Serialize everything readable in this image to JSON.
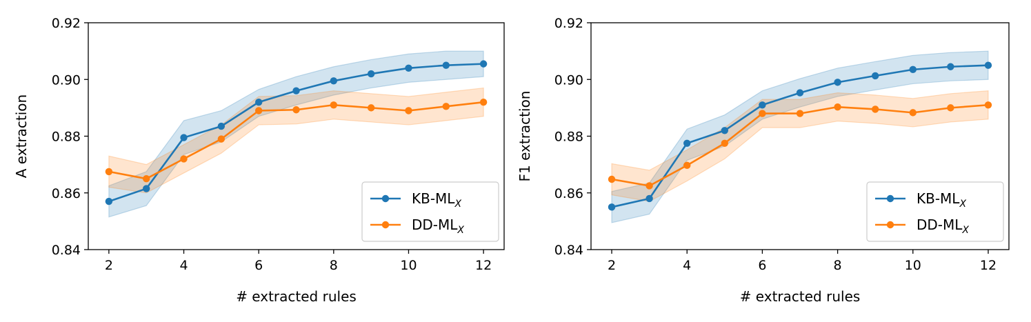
{
  "chart_data": [
    {
      "type": "line",
      "xlabel": "# extracted rules",
      "ylabel": "A extraction",
      "xlim": [
        1.45,
        12.55
      ],
      "ylim": [
        0.84,
        0.92
      ],
      "xticks": [
        2,
        4,
        6,
        8,
        10,
        12
      ],
      "yticks": [
        "0.84",
        "0.86",
        "0.88",
        "0.90",
        "0.92"
      ],
      "grid": false,
      "legend_position": "lower-right",
      "x": [
        2,
        3,
        4,
        5,
        6,
        7,
        8,
        9,
        10,
        11,
        12
      ],
      "series": [
        {
          "name": "KB-ML",
          "subscript": "X",
          "color": "#1f77b4",
          "values": [
            0.857,
            0.8615,
            0.8795,
            0.8835,
            0.892,
            0.896,
            0.8995,
            0.902,
            0.904,
            0.905,
            0.9055
          ],
          "lower": [
            0.8515,
            0.8555,
            0.8735,
            0.878,
            0.887,
            0.891,
            0.8945,
            0.897,
            0.899,
            0.9,
            0.901
          ],
          "upper": [
            0.8625,
            0.8675,
            0.8855,
            0.889,
            0.8965,
            0.901,
            0.9045,
            0.907,
            0.909,
            0.91,
            0.91
          ]
        },
        {
          "name": "DD-ML",
          "subscript": "X",
          "color": "#ff7f0e",
          "values": [
            0.8675,
            0.865,
            0.872,
            0.879,
            0.889,
            0.8893,
            0.891,
            0.89,
            0.889,
            0.8905,
            0.892
          ],
          "lower": [
            0.862,
            0.86,
            0.867,
            0.874,
            0.884,
            0.8843,
            0.886,
            0.885,
            0.884,
            0.8855,
            0.887
          ],
          "upper": [
            0.873,
            0.87,
            0.877,
            0.884,
            0.894,
            0.8943,
            0.896,
            0.895,
            0.894,
            0.8955,
            0.897
          ]
        }
      ]
    },
    {
      "type": "line",
      "xlabel": "# extracted rules",
      "ylabel": "F1 extraction",
      "xlim": [
        1.45,
        12.55
      ],
      "ylim": [
        0.84,
        0.92
      ],
      "xticks": [
        2,
        4,
        6,
        8,
        10,
        12
      ],
      "yticks": [
        "0.84",
        "0.86",
        "0.88",
        "0.90",
        "0.92"
      ],
      "grid": false,
      "legend_position": "lower-right",
      "x": [
        2,
        3,
        4,
        5,
        6,
        7,
        8,
        9,
        10,
        11,
        12
      ],
      "series": [
        {
          "name": "KB-ML",
          "subscript": "X",
          "color": "#1f77b4",
          "values": [
            0.855,
            0.858,
            0.8775,
            0.882,
            0.891,
            0.8953,
            0.899,
            0.9013,
            0.9035,
            0.9045,
            0.905
          ],
          "lower": [
            0.8495,
            0.8525,
            0.8715,
            0.8765,
            0.886,
            0.8903,
            0.894,
            0.8963,
            0.8985,
            0.8995,
            0.9
          ],
          "upper": [
            0.8605,
            0.8635,
            0.8825,
            0.8875,
            0.896,
            0.9003,
            0.904,
            0.9063,
            0.9085,
            0.9095,
            0.91
          ]
        },
        {
          "name": "DD-ML",
          "subscript": "X",
          "color": "#ff7f0e",
          "values": [
            0.8648,
            0.8625,
            0.8697,
            0.8775,
            0.888,
            0.888,
            0.8903,
            0.8895,
            0.8883,
            0.89,
            0.891
          ],
          "lower": [
            0.8593,
            0.857,
            0.8642,
            0.872,
            0.883,
            0.883,
            0.8853,
            0.8845,
            0.8833,
            0.885,
            0.886
          ],
          "upper": [
            0.8703,
            0.868,
            0.8752,
            0.883,
            0.893,
            0.893,
            0.8953,
            0.8945,
            0.8933,
            0.895,
            0.896
          ]
        }
      ]
    }
  ]
}
